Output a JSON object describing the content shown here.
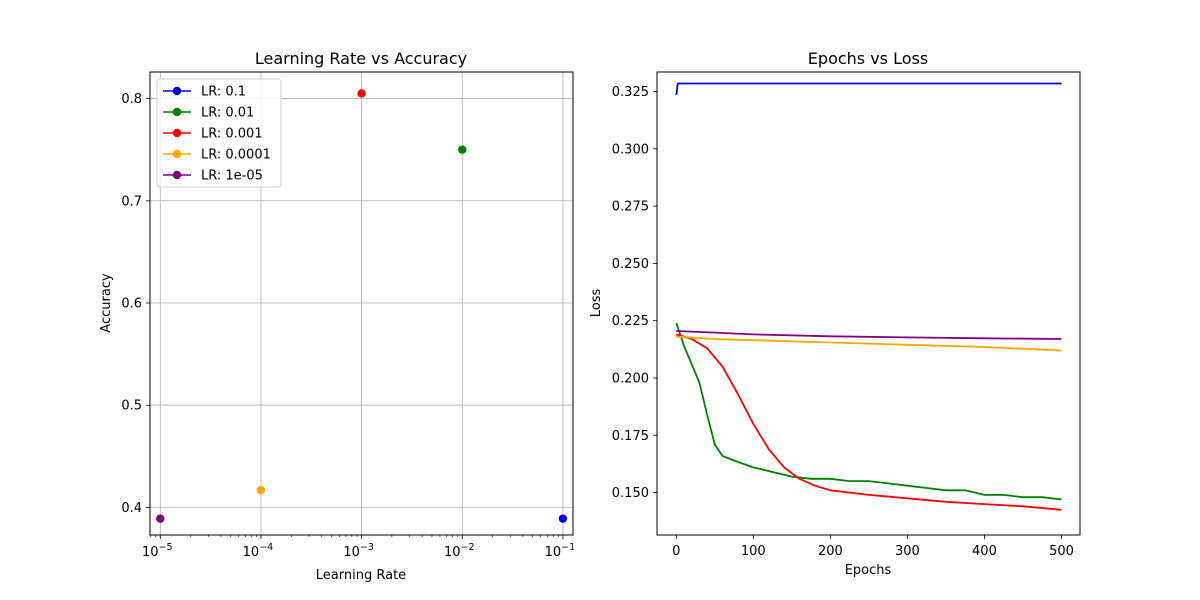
{
  "chart_data": [
    {
      "type": "scatter",
      "title": "Learning Rate vs Accuracy",
      "xlabel": "Learning Rate",
      "ylabel": "Accuracy",
      "xscale": "log",
      "xlim": [
        7.9e-06,
        0.126
      ],
      "ylim": [
        0.373,
        0.826
      ],
      "grid": true,
      "legend_placement": "top-left",
      "xticks": [
        {
          "value": 1e-05,
          "base": "10",
          "exp": "−5"
        },
        {
          "value": 0.0001,
          "base": "10",
          "exp": "−4"
        },
        {
          "value": 0.001,
          "base": "10",
          "exp": "−3"
        },
        {
          "value": 0.01,
          "base": "10",
          "exp": "−2"
        },
        {
          "value": 0.1,
          "base": "10",
          "exp": "−1"
        }
      ],
      "yticks": [
        {
          "value": 0.4,
          "label": "0.4"
        },
        {
          "value": 0.5,
          "label": "0.5"
        },
        {
          "value": 0.6,
          "label": "0.6"
        },
        {
          "value": 0.7,
          "label": "0.7"
        },
        {
          "value": 0.8,
          "label": "0.8"
        }
      ],
      "series": [
        {
          "name": "LR: 0.1",
          "color": "#0000ff",
          "x": 0.1,
          "y": 0.389
        },
        {
          "name": "LR: 0.01",
          "color": "#008000",
          "x": 0.01,
          "y": 0.75
        },
        {
          "name": "LR: 0.001",
          "color": "#ff0000",
          "x": 0.001,
          "y": 0.805
        },
        {
          "name": "LR: 0.0001",
          "color": "#ffa500",
          "x": 0.0001,
          "y": 0.417
        },
        {
          "name": "LR: 1e-05",
          "color": "#800080",
          "x": 1e-05,
          "y": 0.389
        }
      ]
    },
    {
      "type": "line",
      "title": "Epochs vs Loss",
      "xlabel": "Epochs",
      "ylabel": "Loss",
      "xlim": [
        -25,
        524
      ],
      "ylim": [
        0.1315,
        0.3335
      ],
      "grid": false,
      "xticks": [
        {
          "value": 0,
          "label": "0"
        },
        {
          "value": 100,
          "label": "100"
        },
        {
          "value": 200,
          "label": "200"
        },
        {
          "value": 300,
          "label": "300"
        },
        {
          "value": 400,
          "label": "400"
        },
        {
          "value": 500,
          "label": "500"
        }
      ],
      "yticks": [
        {
          "value": 0.15,
          "label": "0.150"
        },
        {
          "value": 0.175,
          "label": "0.175"
        },
        {
          "value": 0.2,
          "label": "0.200"
        },
        {
          "value": 0.225,
          "label": "0.225"
        },
        {
          "value": 0.25,
          "label": "0.250"
        },
        {
          "value": 0.275,
          "label": "0.275"
        },
        {
          "value": 0.3,
          "label": "0.300"
        },
        {
          "value": 0.325,
          "label": "0.325"
        }
      ],
      "series": [
        {
          "name": "LR: 0.1",
          "color": "#0000ff",
          "points": [
            [
              0,
              0.3235
            ],
            [
              2,
              0.3285
            ],
            [
              500,
              0.3285
            ]
          ]
        },
        {
          "name": "LR: 0.01",
          "color": "#008000",
          "points": [
            [
              0,
              0.224
            ],
            [
              10,
              0.214
            ],
            [
              20,
              0.206
            ],
            [
              30,
              0.198
            ],
            [
              40,
              0.184
            ],
            [
              50,
              0.171
            ],
            [
              60,
              0.166
            ],
            [
              75,
              0.164
            ],
            [
              100,
              0.161
            ],
            [
              125,
              0.159
            ],
            [
              150,
              0.157
            ],
            [
              175,
              0.156
            ],
            [
              200,
              0.156
            ],
            [
              225,
              0.155
            ],
            [
              250,
              0.155
            ],
            [
              275,
              0.154
            ],
            [
              300,
              0.153
            ],
            [
              325,
              0.152
            ],
            [
              350,
              0.151
            ],
            [
              375,
              0.151
            ],
            [
              400,
              0.149
            ],
            [
              425,
              0.149
            ],
            [
              450,
              0.148
            ],
            [
              475,
              0.148
            ],
            [
              500,
              0.147
            ]
          ]
        },
        {
          "name": "LR: 0.001",
          "color": "#ff0000",
          "points": [
            [
              0,
              0.219
            ],
            [
              20,
              0.217
            ],
            [
              40,
              0.213
            ],
            [
              60,
              0.205
            ],
            [
              80,
              0.193
            ],
            [
              100,
              0.18
            ],
            [
              120,
              0.169
            ],
            [
              140,
              0.161
            ],
            [
              160,
              0.156
            ],
            [
              180,
              0.153
            ],
            [
              200,
              0.151
            ],
            [
              250,
              0.149
            ],
            [
              300,
              0.1475
            ],
            [
              350,
              0.146
            ],
            [
              400,
              0.145
            ],
            [
              450,
              0.144
            ],
            [
              500,
              0.1425
            ]
          ]
        },
        {
          "name": "LR: 0.0001",
          "color": "#ffa500",
          "points": [
            [
              0,
              0.218
            ],
            [
              50,
              0.217
            ],
            [
              100,
              0.2165
            ],
            [
              200,
              0.2155
            ],
            [
              300,
              0.2145
            ],
            [
              400,
              0.2135
            ],
            [
              500,
              0.212
            ]
          ]
        },
        {
          "name": "LR: 1e-05",
          "color": "#800080",
          "points": [
            [
              0,
              0.2205
            ],
            [
              50,
              0.2198
            ],
            [
              100,
              0.219
            ],
            [
              200,
              0.2182
            ],
            [
              300,
              0.2177
            ],
            [
              400,
              0.2173
            ],
            [
              500,
              0.217
            ]
          ]
        }
      ]
    }
  ]
}
